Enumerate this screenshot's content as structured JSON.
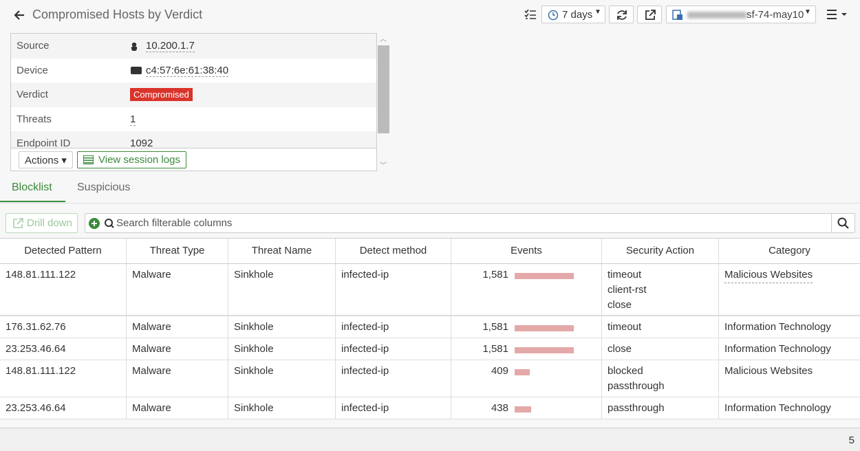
{
  "header": {
    "title": "Compromised Hosts by Verdict",
    "time_range": "7 days",
    "device": "sf-74-may10"
  },
  "summary": {
    "rows": [
      [
        "Source",
        "10.200.1.7"
      ],
      [
        "Device",
        "c4:57:6e:61:38:40"
      ],
      [
        "Verdict",
        "Compromised"
      ],
      [
        "Threats",
        "1"
      ],
      [
        "Endpoint ID",
        "1092"
      ]
    ],
    "actions": "Actions",
    "view_logs": "View session logs"
  },
  "tabs": [
    "Blocklist",
    "Suspicious"
  ],
  "toolbar": {
    "drill_down": "Drill down",
    "search_placeholder": "Search filterable columns"
  },
  "table": {
    "columns": [
      "Detected Pattern",
      "Threat Type",
      "Threat Name",
      "Detect method",
      "Events",
      "Security Action",
      "Category"
    ],
    "rows": [
      {
        "pattern": "148.81.111.122",
        "threat_type": "Malware",
        "threat_name": "Sinkhole",
        "method": "infected-ip",
        "events": {
          "value": 1581,
          "label": "1,581"
        },
        "actions": [
          "timeout",
          "client-rst",
          "close"
        ],
        "category": "Malicious Websites"
      },
      {
        "pattern": "176.31.62.76",
        "threat_type": "Malware",
        "threat_name": "Sinkhole",
        "method": "infected-ip",
        "events": {
          "value": 1581,
          "label": "1,581"
        },
        "actions": [
          "timeout"
        ],
        "category": "Information Technology"
      },
      {
        "pattern": "23.253.46.64",
        "threat_type": "Malware",
        "threat_name": "Sinkhole",
        "method": "infected-ip",
        "events": {
          "value": 1581,
          "label": "1,581"
        },
        "actions": [
          "close"
        ],
        "category": "Information Technology"
      },
      {
        "pattern": "148.81.111.122",
        "threat_type": "Malware",
        "threat_name": "Sinkhole",
        "method": "infected-ip",
        "events": {
          "value": 409,
          "label": "409"
        },
        "actions": [
          "blocked",
          "passthrough"
        ],
        "category": "Malicious Websites"
      },
      {
        "pattern": "23.253.46.64",
        "threat_type": "Malware",
        "threat_name": "Sinkhole",
        "method": "infected-ip",
        "events": {
          "value": 438,
          "label": "438"
        },
        "actions": [
          "passthrough"
        ],
        "category": "Information Technology"
      }
    ]
  },
  "footer": {
    "count": 5
  }
}
